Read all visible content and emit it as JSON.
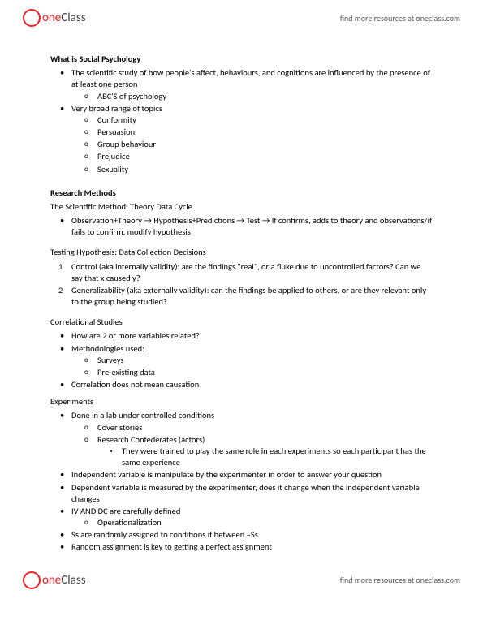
{
  "brand": {
    "iconLetter": "",
    "one": "one",
    "class": "Class"
  },
  "tagline": "find more resources at oneclass.com",
  "colors": {
    "accent": "#ec2027",
    "text": "#000000",
    "muted": "#555555",
    "bg": "#ffffff"
  },
  "typography": {
    "body_fontsize": 10.5,
    "title_weight": "bold",
    "line_height": 1.35
  },
  "sections": {
    "s1": {
      "title": "What is Social Psychology",
      "b1": "The scientific study of how people's affect, behaviours, and cognitions are influenced by the presence of at least one person",
      "b1a": "ABC'S of psychology",
      "b2": "Very broad range of topics",
      "b2a": "Conformity",
      "b2b": "Persuasion",
      "b2c": "Group behaviour",
      "b2d": "Prejudice",
      "b2e": "Sexuality"
    },
    "s2": {
      "title": "Research Methods",
      "sub1": "The Scientific Method: Theory Data Cycle",
      "b1": "Observation+Theory → Hypothesis+Predictions → Test → If confirms, adds to theory and observations/if fails to confirm, modify hypothesis",
      "sub2": "Testing Hypothesis: Data Collection Decisions",
      "n1": "Control (aka internally validity): are the findings \"real\", or a fluke due to uncontrolled factors? Can we say that x caused y?",
      "n2": "Generalizability (aka externally validity): can the findings be applied to others, or are they relevant only to the group being studied?",
      "sub3": "Correlational Studies",
      "c1": "How are 2 or more variables related?",
      "c2": "Methodologies used:",
      "c2a": "Surveys",
      "c2b": "Pre-existing data",
      "c3": "Correlation does not mean causation",
      "sub4": "Experiments",
      "e1": "Done in a lab under controlled conditions",
      "e1a": "Cover stories",
      "e1b": "Research Confederates (actors)",
      "e1b1": "They were trained to play the same role in each experiments so each participant has the same experience",
      "e2": "Independent variable is manipulate by the experimenter in order to answer your question",
      "e3": "Dependent variable is measured by the experimenter, does it change when the independent variable changes",
      "e4": "IV AND DC are carefully defined",
      "e4a": "Operationalization",
      "e5": "Ss are randomly assigned to conditions if between –Ss",
      "e6": "Random assignment is key to getting a perfect assignment"
    }
  }
}
